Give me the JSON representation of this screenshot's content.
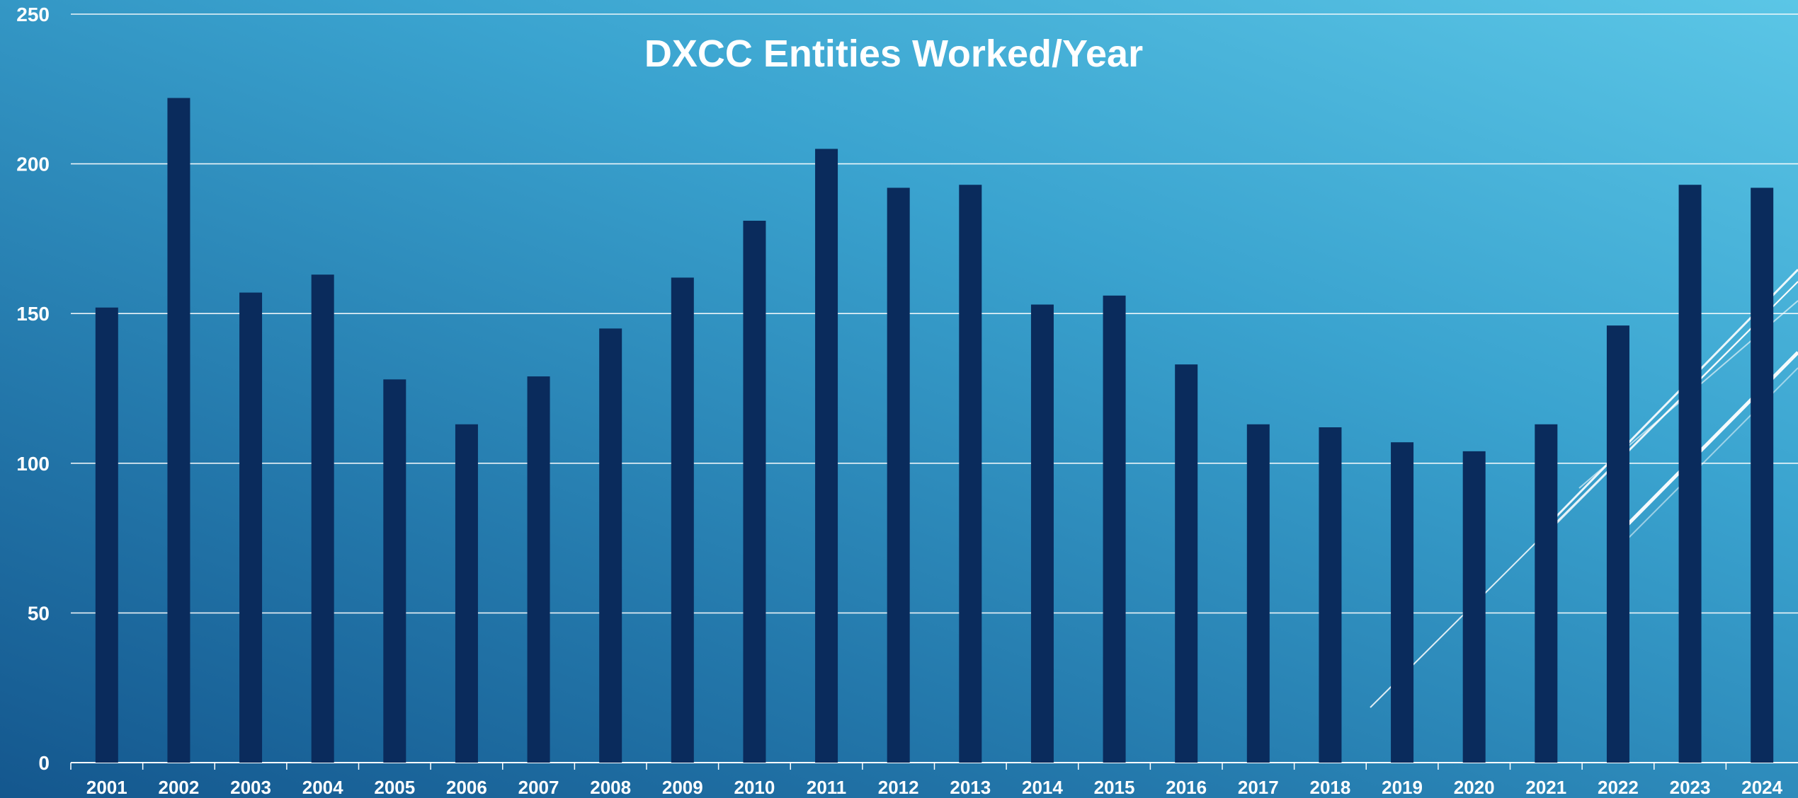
{
  "chart_data": {
    "type": "bar",
    "title": "DXCC Entities Worked/Year",
    "xlabel": "",
    "ylabel": "",
    "categories": [
      "2001",
      "2002",
      "2003",
      "2004",
      "2005",
      "2006",
      "2007",
      "2008",
      "2009",
      "2010",
      "2011",
      "2012",
      "2013",
      "2014",
      "2015",
      "2016",
      "2017",
      "2018",
      "2019",
      "2020",
      "2021",
      "2022",
      "2023",
      "2024"
    ],
    "values": [
      152,
      222,
      157,
      163,
      128,
      113,
      129,
      145,
      162,
      181,
      205,
      192,
      193,
      153,
      156,
      133,
      113,
      112,
      107,
      104,
      113,
      146,
      193,
      192
    ],
    "ylim": [
      0,
      250
    ],
    "yticks": [
      "0",
      "50",
      "100",
      "150",
      "200",
      "250"
    ],
    "grid": true,
    "legend": "none",
    "colors": {
      "bar": "#0a2b5c",
      "grid": "#ffffff",
      "text": "#ffffff",
      "background_top": "#5bc6e6",
      "background_bottom": "#14578e"
    }
  }
}
